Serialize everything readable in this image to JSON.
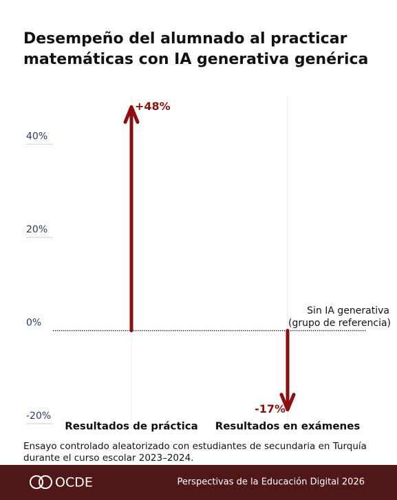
{
  "chart_data": {
    "type": "arrow",
    "title": [
      "Desempeño del alumnado al practicar",
      "matemáticas con IA generativa genérica"
    ],
    "categories": [
      "Resultados de práctica",
      "Resultados en exámenes"
    ],
    "values": [
      48,
      -17
    ],
    "value_labels": [
      "+48%",
      "-17%"
    ],
    "color": "#8a1010",
    "ylim": [
      -20,
      50
    ],
    "yticks": [
      {
        "value": -20,
        "label": "-20%"
      },
      {
        "value": 0,
        "label": "0%"
      },
      {
        "value": 20,
        "label": "20%"
      },
      {
        "value": 40,
        "label": "40%"
      }
    ],
    "reference_label": [
      "Sin IA generativa",
      "(grupo de referencia)"
    ],
    "note": [
      "Ensayo controlado aleatorizado con estudiantes de secundaria en Turquía",
      "durante el curso escolar 2023–2024."
    ]
  },
  "footer": {
    "logo": "OCDE",
    "text": "Perspectivas de la Educación Digital 2026"
  }
}
